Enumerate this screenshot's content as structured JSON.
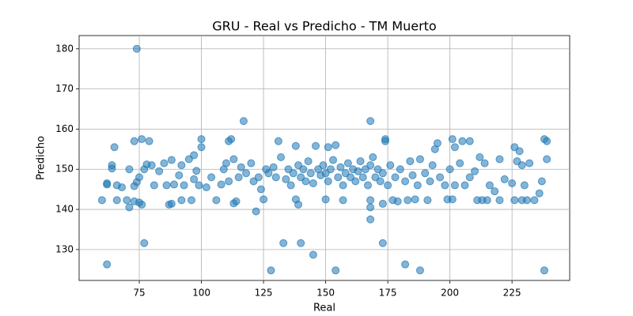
{
  "chart_data": {
    "type": "scatter",
    "title": "GRU - Real vs Predicho - TM Muerto",
    "x_label": "Real",
    "y_label": "Predicho",
    "color": "#1f77b4",
    "grid": true,
    "xlim": [
      50.8,
      248.2
    ],
    "ylim": [
      122.3,
      183.3
    ],
    "xticks": [
      75,
      100,
      125,
      150,
      175,
      200,
      225
    ],
    "yticks": [
      130,
      140,
      150,
      160,
      170,
      180
    ],
    "x": [
      74,
      62,
      77,
      128,
      133,
      140,
      145,
      154,
      173,
      182,
      188,
      238,
      117,
      168,
      122,
      168,
      168,
      65,
      73,
      76,
      79,
      100,
      100,
      111,
      112,
      131,
      138,
      146,
      151,
      154,
      174,
      174,
      195,
      201,
      202,
      205,
      208,
      226,
      238,
      239,
      228,
      97,
      194,
      60,
      62,
      62,
      66,
      70,
      71,
      73,
      75,
      76,
      87,
      88,
      92,
      96,
      106,
      113,
      114,
      125,
      138,
      139,
      150,
      157,
      168,
      173,
      177,
      179,
      183,
      186,
      191,
      199,
      201,
      211,
      213,
      215,
      220,
      226,
      229,
      231,
      236,
      64,
      64,
      66,
      68,
      71,
      73,
      74,
      75,
      77,
      78,
      80,
      81,
      83,
      85,
      86,
      88,
      89,
      91,
      92,
      93,
      95,
      97,
      98,
      99,
      102,
      104,
      108,
      109,
      110,
      111,
      113,
      115,
      116,
      118,
      120,
      121,
      123,
      124,
      126,
      127,
      129,
      130,
      132,
      134,
      135,
      136,
      137,
      139,
      140,
      141,
      142,
      143,
      144,
      145,
      147,
      148,
      149,
      150,
      151,
      152,
      153,
      155,
      156,
      157,
      158,
      159,
      160,
      161,
      162,
      163,
      164,
      165,
      166,
      167,
      168,
      169,
      170,
      171,
      172,
      173,
      175,
      176,
      178,
      180,
      182,
      184,
      185,
      187,
      188,
      190,
      192,
      193,
      196,
      198,
      200,
      202,
      204,
      206,
      208,
      210,
      212,
      214,
      216,
      218,
      220,
      222,
      225,
      227,
      229,
      230,
      232,
      234,
      237,
      239
    ],
    "y": [
      180,
      126.3,
      131.6,
      124.8,
      131.6,
      131.6,
      128.7,
      124.8,
      131.6,
      126.3,
      124.8,
      124.8,
      162,
      162,
      139.5,
      137.5,
      140.5,
      155.5,
      157,
      157.5,
      157,
      157.5,
      155.5,
      157,
      157.5,
      157,
      155.8,
      155.8,
      155.5,
      156,
      157.5,
      157,
      156.5,
      157.5,
      155.5,
      157,
      157,
      155.5,
      157.5,
      157,
      154.5,
      153.5,
      155,
      142.3,
      146.5,
      146.2,
      142.3,
      142.3,
      140.5,
      142,
      141.7,
      141.2,
      141.2,
      141.4,
      142.3,
      142.3,
      142.3,
      141.5,
      142,
      142.5,
      142.5,
      141.2,
      142.5,
      142.3,
      142.3,
      141.4,
      142.3,
      142,
      142.3,
      142.5,
      142.3,
      142.5,
      142.5,
      142.3,
      142.3,
      142.3,
      142.3,
      142.3,
      142.3,
      142.3,
      144,
      150.2,
      151,
      146,
      145.5,
      150,
      145.8,
      146.8,
      148,
      150,
      151.2,
      151,
      146,
      149.5,
      151.5,
      146,
      152.3,
      146.2,
      148.5,
      151,
      146,
      152.5,
      147.5,
      149.6,
      146,
      145.5,
      148,
      146.2,
      150,
      151.5,
      147,
      152.5,
      148,
      150.5,
      149,
      151.5,
      147,
      148,
      145,
      150,
      149,
      150.5,
      148,
      153,
      147.5,
      150,
      146,
      149,
      151,
      148,
      150,
      147,
      152,
      149,
      146.5,
      150,
      148.5,
      151,
      149,
      147,
      150,
      152.3,
      148,
      150.5,
      146,
      149,
      151.5,
      148,
      150,
      147,
      149.5,
      152,
      148,
      150,
      146,
      151,
      153,
      148,
      150,
      147,
      149,
      146,
      151,
      148,
      150,
      147,
      152,
      148.5,
      146,
      152.5,
      149,
      147,
      151,
      148,
      146,
      150,
      146,
      151.5,
      146,
      148,
      149.5,
      153,
      151.5,
      146,
      144.5,
      152.5,
      147.5,
      146.5,
      152,
      151,
      146,
      151.5,
      142.3,
      147,
      152.5
    ]
  }
}
